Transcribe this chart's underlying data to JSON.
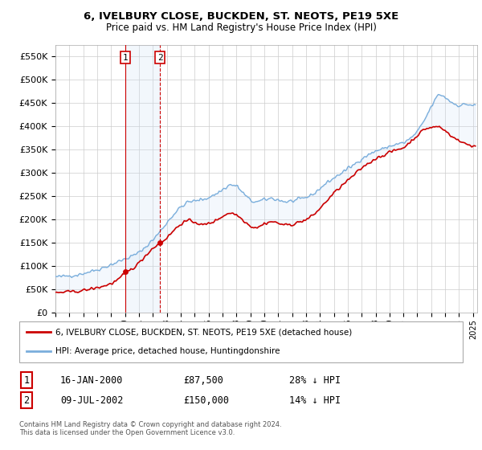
{
  "title": "6, IVELBURY CLOSE, BUCKDEN, ST. NEOTS, PE19 5XE",
  "subtitle": "Price paid vs. HM Land Registry's House Price Index (HPI)",
  "legend_line1": "6, IVELBURY CLOSE, BUCKDEN, ST. NEOTS, PE19 5XE (detached house)",
  "legend_line2": "HPI: Average price, detached house, Huntingdonshire",
  "footer": "Contains HM Land Registry data © Crown copyright and database right 2024.\nThis data is licensed under the Open Government Licence v3.0.",
  "purchase1_price": 87500,
  "purchase2_price": 150000,
  "hpi_color": "#7aaedc",
  "price_color": "#cc0000",
  "shading_color": "#cce0f5",
  "vline1_color": "#cc0000",
  "vline2_color": "#cc0000",
  "ylim": [
    0,
    575000
  ],
  "yticks": [
    0,
    50000,
    100000,
    150000,
    200000,
    250000,
    300000,
    350000,
    400000,
    450000,
    500000,
    550000
  ],
  "ytick_labels": [
    "£0",
    "£50K",
    "£100K",
    "£150K",
    "£200K",
    "£250K",
    "£300K",
    "£350K",
    "£400K",
    "£450K",
    "£500K",
    "£550K"
  ],
  "p1_year": 2000.04,
  "p2_year": 2002.52,
  "table_rows": [
    {
      "label": "1",
      "date": "16-JAN-2000",
      "price": "£87,500",
      "hpi": "28% ↓ HPI"
    },
    {
      "label": "2",
      "date": "09-JUL-2002",
      "price": "£150,000",
      "hpi": "14% ↓ HPI"
    }
  ]
}
